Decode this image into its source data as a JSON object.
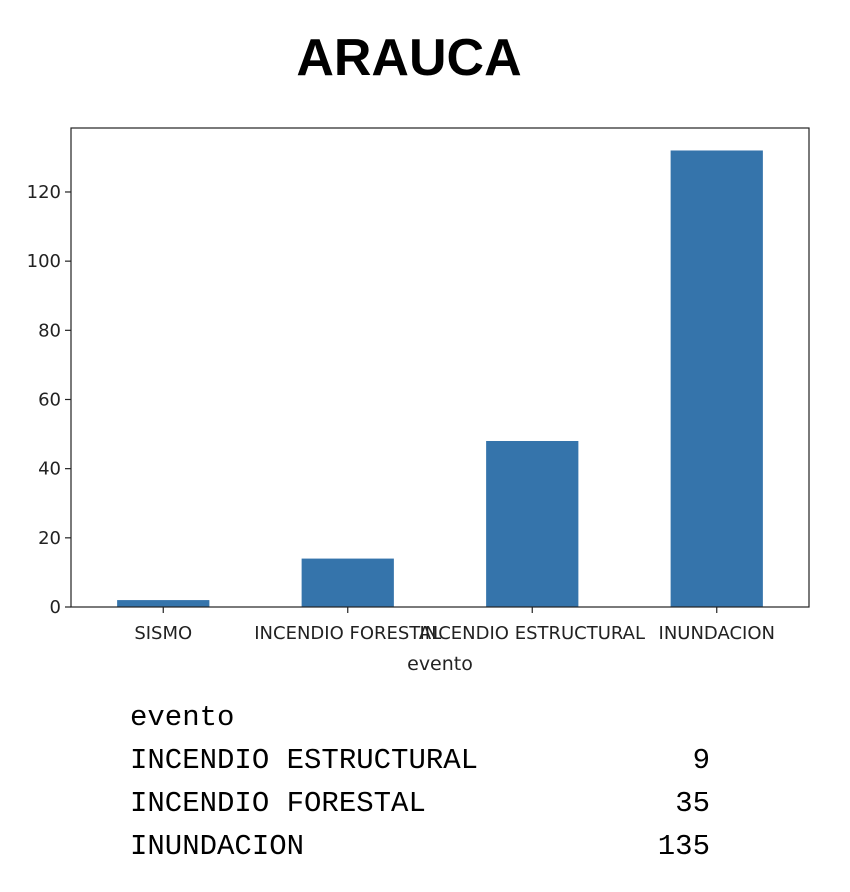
{
  "title": "ARAUCA",
  "chart_data": {
    "type": "bar",
    "categories": [
      "SISMO",
      "INCENDIO FORESTAL",
      "INCENDIO ESTRUCTURAL",
      "INUNDACION"
    ],
    "values": [
      2,
      14,
      48,
      132
    ],
    "xlabel": "evento",
    "ylabel": "",
    "ylim": [
      0,
      138.5
    ],
    "yticks": [
      0,
      20,
      40,
      60,
      80,
      100,
      120
    ],
    "bar_color": "#3574ab",
    "grid": false
  },
  "output": {
    "header": "evento",
    "rows": [
      {
        "label": "INCENDIO ESTRUCTURAL",
        "value": "9"
      },
      {
        "label": "INCENDIO FORESTAL",
        "value": "35"
      },
      {
        "label": "INUNDACION",
        "value": "135"
      }
    ]
  }
}
